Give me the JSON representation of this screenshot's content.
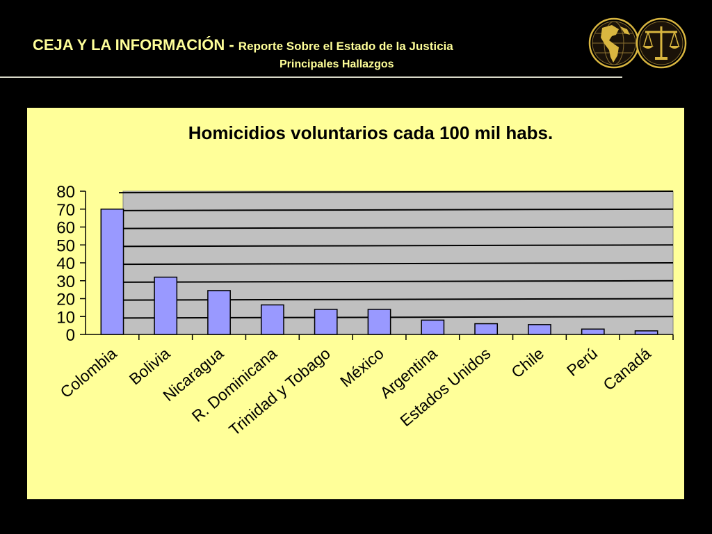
{
  "header": {
    "title": "CEJA Y LA INFORMACIÓN - ",
    "title_sub": "Reporte Sobre el Estado de la Justicia",
    "subtitle": "Principales Hallazgos",
    "logos": [
      "globe-icon",
      "scales-of-justice-icon"
    ]
  },
  "colors": {
    "background": "#000000",
    "header_text": "#ffff99",
    "panel": "#ffff99",
    "plot_area": "#c0c0c0",
    "bar_fill": "#9999ff",
    "bar_stroke": "#000000"
  },
  "chart_data": {
    "type": "bar",
    "title": "Homicidios voluntarios cada 100 mil habs.",
    "xlabel": "",
    "ylabel": "",
    "categories": [
      "Colombia",
      "Bolivia",
      "Nicaragua",
      "R. Dominicana",
      "Trinidad y Tobago",
      "México",
      "Argentina",
      "Estados Unidos",
      "Chile",
      "Perú",
      "Canadá"
    ],
    "values": [
      70,
      32,
      24.5,
      16.5,
      14,
      14,
      8,
      6,
      5.5,
      3,
      2
    ],
    "ylim": [
      0,
      80
    ],
    "yticks": [
      0,
      10,
      20,
      30,
      40,
      50,
      60,
      70,
      80
    ],
    "grid": true,
    "legend": "none"
  }
}
